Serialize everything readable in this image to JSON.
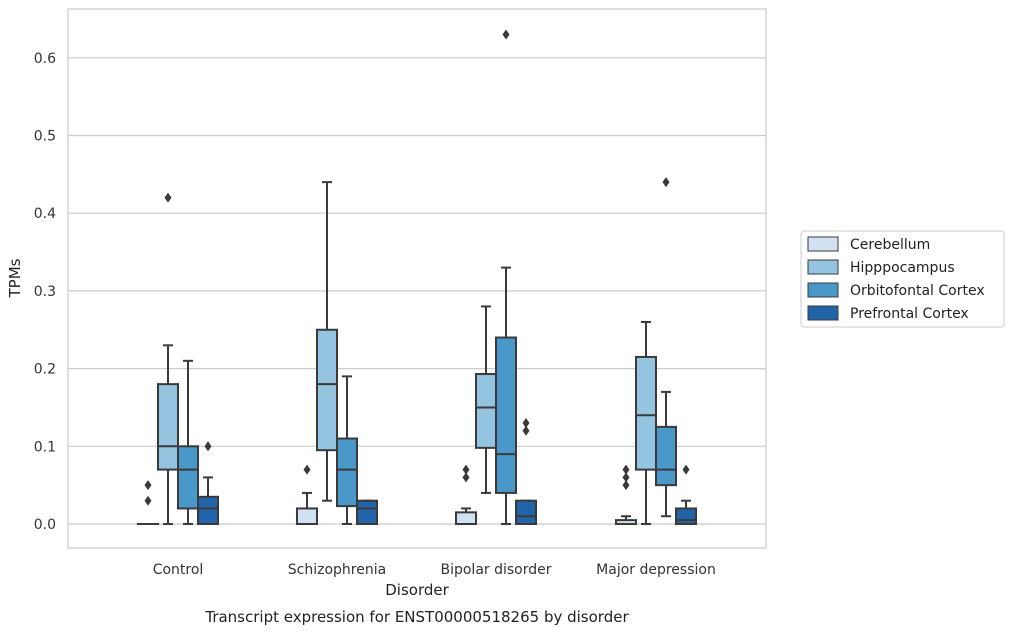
{
  "chart_data": {
    "type": "box",
    "xlabel": "Disorder",
    "ylabel": "TPMs",
    "caption": "Transcript expression for ENST00000518265 by disorder",
    "ylim": [
      -0.03,
      0.66
    ],
    "yticks": [
      0.0,
      0.1,
      0.2,
      0.3,
      0.4,
      0.5,
      0.6
    ],
    "ytick_labels": [
      "0.0",
      "0.1",
      "0.2",
      "0.3",
      "0.4",
      "0.5",
      "0.6"
    ],
    "grid": "horizontal",
    "legend_position": "right",
    "categories": [
      "Control",
      "Schizophrenia",
      "Bipolar disorder",
      "Major depression"
    ],
    "series": [
      {
        "name": "Cerebellum",
        "color": "#d0e1f2",
        "boxes": [
          {
            "whisker_low": 0.0,
            "q1": 0.0,
            "median": 0.0,
            "q3": 0.0,
            "whisker_high": 0.0,
            "outliers": [
              0.03,
              0.05
            ]
          },
          {
            "whisker_low": 0.0,
            "q1": 0.0,
            "median": 0.0,
            "q3": 0.02,
            "whisker_high": 0.04,
            "outliers": [
              0.07
            ]
          },
          {
            "whisker_low": 0.0,
            "q1": 0.0,
            "median": 0.0,
            "q3": 0.015,
            "whisker_high": 0.02,
            "outliers": [
              0.06,
              0.07
            ]
          },
          {
            "whisker_low": 0.0,
            "q1": 0.0,
            "median": 0.0,
            "q3": 0.005,
            "whisker_high": 0.01,
            "outliers": [
              0.05,
              0.06,
              0.07
            ]
          }
        ]
      },
      {
        "name": "Hipppocampus",
        "color": "#94c4df",
        "boxes": [
          {
            "whisker_low": 0.0,
            "q1": 0.07,
            "median": 0.1,
            "q3": 0.18,
            "whisker_high": 0.23,
            "outliers": [
              0.42
            ]
          },
          {
            "whisker_low": 0.03,
            "q1": 0.095,
            "median": 0.18,
            "q3": 0.25,
            "whisker_high": 0.44,
            "outliers": []
          },
          {
            "whisker_low": 0.04,
            "q1": 0.098,
            "median": 0.15,
            "q3": 0.193,
            "whisker_high": 0.28,
            "outliers": []
          },
          {
            "whisker_low": 0.0,
            "q1": 0.07,
            "median": 0.14,
            "q3": 0.215,
            "whisker_high": 0.26,
            "outliers": []
          }
        ]
      },
      {
        "name": "Orbitofontal Cortex",
        "color": "#4a98c9",
        "boxes": [
          {
            "whisker_low": 0.0,
            "q1": 0.02,
            "median": 0.07,
            "q3": 0.1,
            "whisker_high": 0.21,
            "outliers": []
          },
          {
            "whisker_low": 0.0,
            "q1": 0.023,
            "median": 0.07,
            "q3": 0.11,
            "whisker_high": 0.19,
            "outliers": []
          },
          {
            "whisker_low": 0.0,
            "q1": 0.04,
            "median": 0.09,
            "q3": 0.24,
            "whisker_high": 0.33,
            "outliers": [
              0.63
            ]
          },
          {
            "whisker_low": 0.01,
            "q1": 0.05,
            "median": 0.07,
            "q3": 0.125,
            "whisker_high": 0.17,
            "outliers": [
              0.44
            ]
          }
        ]
      },
      {
        "name": "Prefrontal Cortex",
        "color": "#2264a9",
        "boxes": [
          {
            "whisker_low": 0.0,
            "q1": 0.0,
            "median": 0.02,
            "q3": 0.035,
            "whisker_high": 0.06,
            "outliers": [
              0.1
            ]
          },
          {
            "whisker_low": 0.0,
            "q1": 0.0,
            "median": 0.02,
            "q3": 0.03,
            "whisker_high": 0.03,
            "outliers": []
          },
          {
            "whisker_low": 0.0,
            "q1": 0.0,
            "median": 0.01,
            "q3": 0.03,
            "whisker_high": 0.03,
            "outliers": [
              0.12,
              0.13
            ]
          },
          {
            "whisker_low": 0.0,
            "q1": 0.0,
            "median": 0.005,
            "q3": 0.02,
            "whisker_high": 0.03,
            "outliers": [
              0.07
            ]
          }
        ]
      }
    ]
  }
}
